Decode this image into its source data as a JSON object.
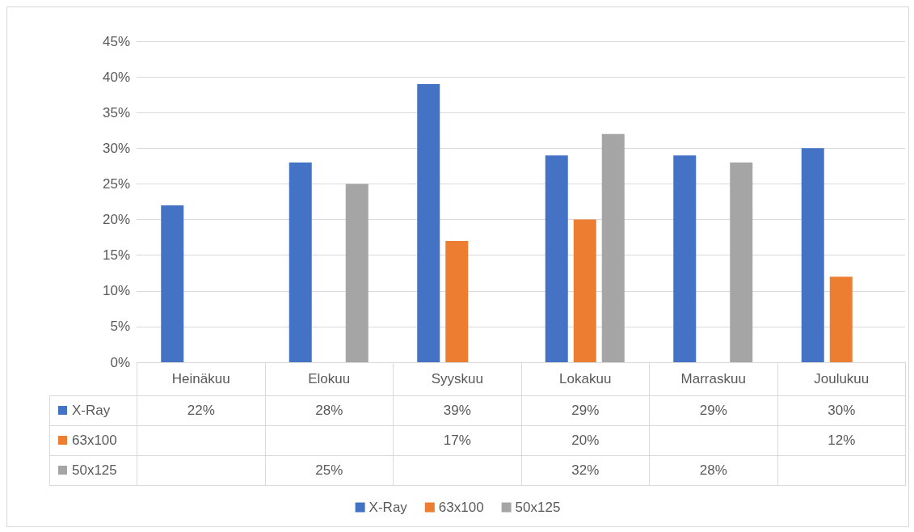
{
  "chart_data": {
    "type": "bar",
    "categories": [
      "Heinäkuu",
      "Elokuu",
      "Syyskuu",
      "Lokakuu",
      "Marraskuu",
      "Joulukuu"
    ],
    "series": [
      {
        "name": "X-Ray",
        "color": "#4472c4",
        "values": [
          22,
          28,
          39,
          29,
          29,
          30
        ],
        "value_labels": [
          "22%",
          "28%",
          "39%",
          "29%",
          "29%",
          "30%"
        ]
      },
      {
        "name": "63x100",
        "color": "#ed7d31",
        "values": [
          null,
          null,
          17,
          20,
          null,
          12
        ],
        "value_labels": [
          null,
          null,
          "17%",
          "20%",
          null,
          "12%"
        ]
      },
      {
        "name": "50x125",
        "color": "#a5a5a5",
        "values": [
          null,
          25,
          null,
          32,
          28,
          null
        ],
        "value_labels": [
          null,
          "25%",
          null,
          "32%",
          "28%",
          null
        ]
      }
    ],
    "ylim": [
      0,
      45
    ],
    "yticks": [
      {
        "value": 0,
        "label": "0%"
      },
      {
        "value": 5,
        "label": "5%"
      },
      {
        "value": 10,
        "label": "10%"
      },
      {
        "value": 15,
        "label": "15%"
      },
      {
        "value": 20,
        "label": "20%"
      },
      {
        "value": 25,
        "label": "25%"
      },
      {
        "value": 30,
        "label": "30%"
      },
      {
        "value": 35,
        "label": "35%"
      },
      {
        "value": 40,
        "label": "40%"
      },
      {
        "value": 45,
        "label": "45%"
      }
    ],
    "grid": "y",
    "legend": "bottom"
  }
}
